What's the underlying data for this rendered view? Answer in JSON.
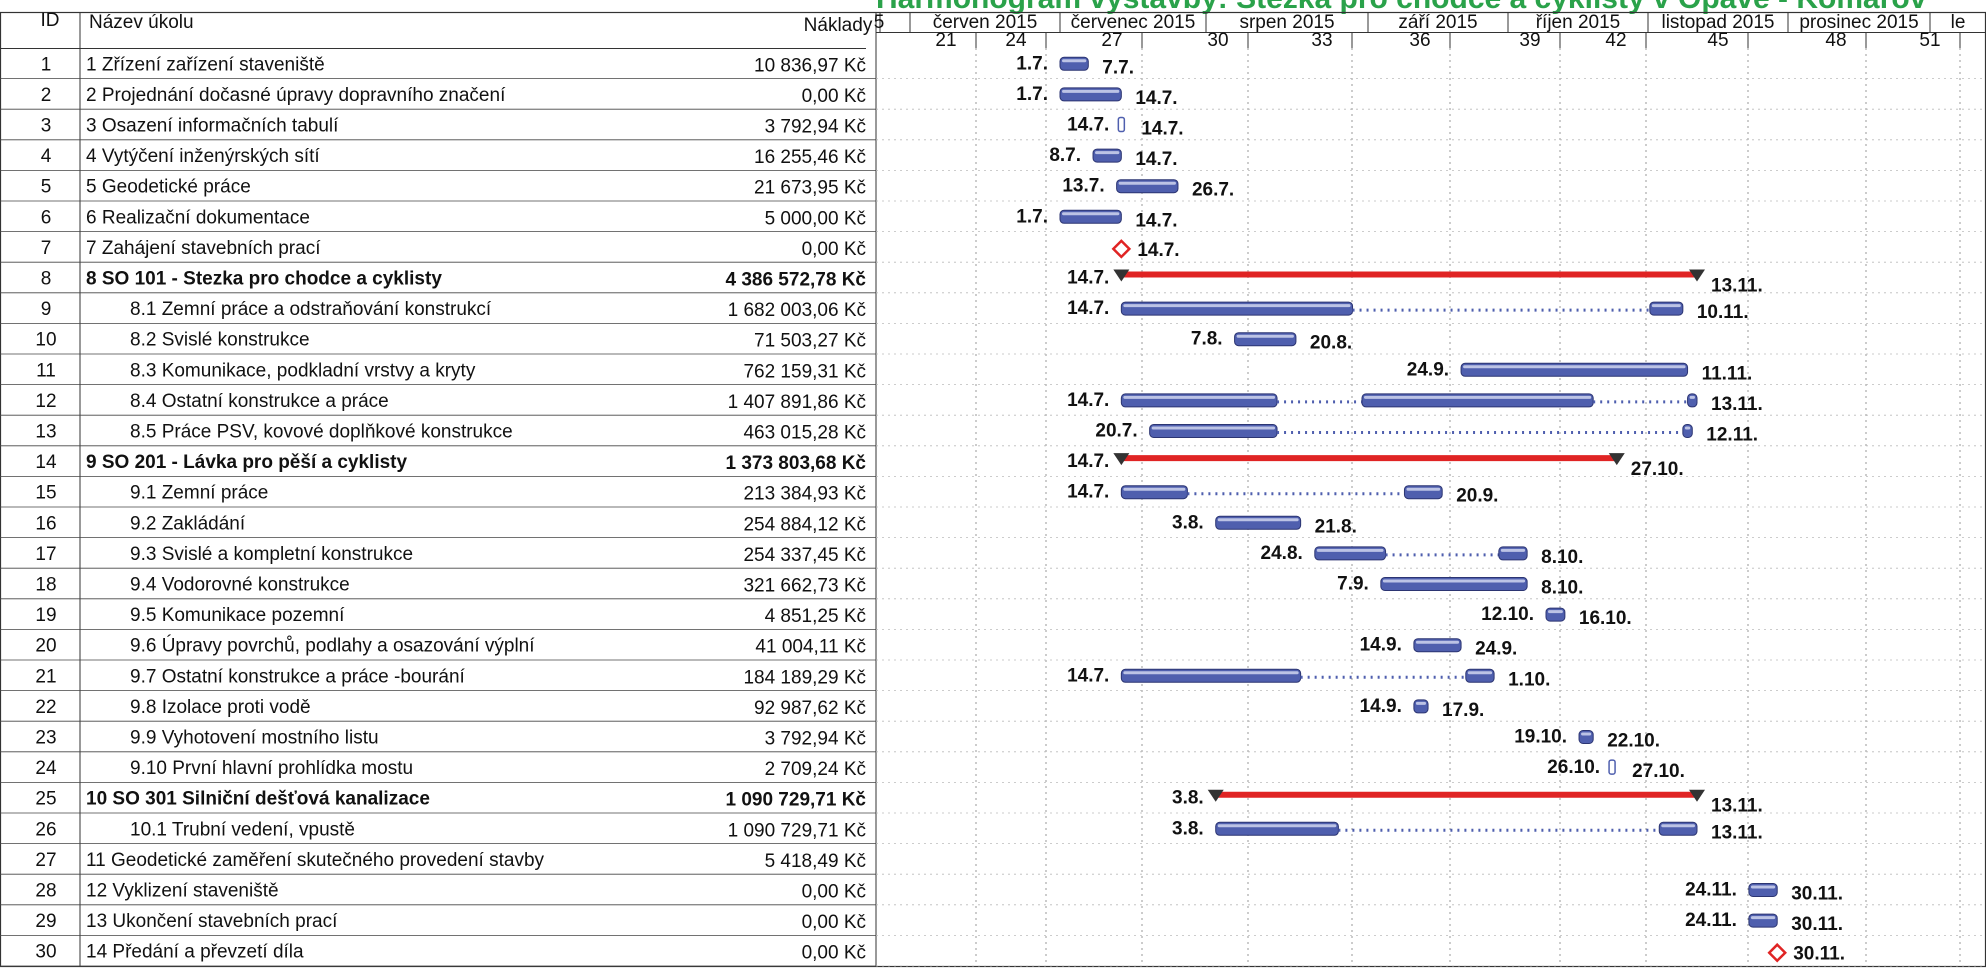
{
  "title": "Harmonogram výstavby: Stezka pro chodce a cyklisty v Opavě - Komárov",
  "table_headers": {
    "id": "ID",
    "name": "Název úkolu",
    "cost": "Náklady"
  },
  "chart_data": {
    "type": "gantt",
    "months": [
      {
        "label": "5"
      },
      {
        "label": "červen 2015"
      },
      {
        "label": "červenec 2015"
      },
      {
        "label": "srpen 2015"
      },
      {
        "label": "září 2015"
      },
      {
        "label": "říjen 2015"
      },
      {
        "label": "listopad 2015"
      },
      {
        "label": "prosinec 2015"
      },
      {
        "label": "le"
      }
    ],
    "weeks": [
      "21",
      "24",
      "27",
      "30",
      "33",
      "36",
      "39",
      "42",
      "45",
      "48",
      "51"
    ],
    "tasks": [
      {
        "id": "1",
        "name": "1 Zřízení zařízení staveniště",
        "cost": "10 836,97 Kč",
        "type": "task",
        "start": "1.7.",
        "end": "7.7.",
        "gap": null,
        "bold": false,
        "indent": false
      },
      {
        "id": "2",
        "name": "2 Projednání dočasné úpravy dopravního značení",
        "cost": "0,00 Kč",
        "type": "task",
        "start": "1.7.",
        "end": "14.7.",
        "gap": null,
        "bold": false,
        "indent": false
      },
      {
        "id": "3",
        "name": "3 Osazení informačních tabulí",
        "cost": "3 792,94 Kč",
        "type": "task",
        "start": "14.7.",
        "end": "14.7.",
        "gap": null,
        "bold": false,
        "indent": false
      },
      {
        "id": "4",
        "name": "4 Vytýčení inženýrských sítí",
        "cost": "16 255,46 Kč",
        "type": "task",
        "start": "8.7.",
        "end": "14.7.",
        "gap": null,
        "bold": false,
        "indent": false
      },
      {
        "id": "5",
        "name": "5 Geodetické práce",
        "cost": "21 673,95 Kč",
        "type": "task",
        "start": "13.7.",
        "end": "26.7.",
        "gap": null,
        "bold": false,
        "indent": false
      },
      {
        "id": "6",
        "name": "6 Realizační dokumentace",
        "cost": "5 000,00 Kč",
        "type": "task",
        "start": "1.7.",
        "end": "14.7.",
        "gap": null,
        "bold": false,
        "indent": false
      },
      {
        "id": "7",
        "name": "7 Zahájení stavebních prací",
        "cost": "0,00 Kč",
        "type": "milestone",
        "start": "14.7.",
        "end": "14.7.",
        "gap": null,
        "bold": false,
        "indent": false
      },
      {
        "id": "8",
        "name": "8 SO 101 - Stezka pro chodce a cyklisty",
        "cost": "4 386 572,78 Kč",
        "type": "summary",
        "start": "14.7.",
        "end": "13.11.",
        "gap": null,
        "bold": true,
        "indent": false
      },
      {
        "id": "9",
        "name": "8.1 Zemní práce a odstraňování konstrukcí",
        "cost": "1 682 003,06 Kč",
        "type": "task",
        "start": "14.7.",
        "end": "10.11.",
        "gap": [
          "1.9.",
          "3.11."
        ],
        "bold": false,
        "indent": true
      },
      {
        "id": "10",
        "name": "8.2 Svislé konstrukce",
        "cost": "71 503,27 Kč",
        "type": "task",
        "start": "7.8.",
        "end": "20.8.",
        "gap": null,
        "bold": false,
        "indent": true
      },
      {
        "id": "11",
        "name": "8.3 Komunikace, podkladní vrstvy a kryty",
        "cost": "762 159,31 Kč",
        "type": "task",
        "start": "24.9.",
        "end": "11.11.",
        "gap": null,
        "bold": false,
        "indent": true
      },
      {
        "id": "12",
        "name": "8.4 Ostatní konstrukce a práce",
        "cost": "1 407 891,86 Kč",
        "type": "task",
        "start": "14.7.",
        "end": "13.11.",
        "gap": [
          "16.8.",
          "3.9."
        ],
        "gap2": [
          "22.10.",
          "11.11."
        ],
        "bold": false,
        "indent": true
      },
      {
        "id": "13",
        "name": "8.5 Práce PSV, kovové doplňkové konstrukce",
        "cost": "463 015,28 Kč",
        "type": "task",
        "start": "20.7.",
        "end": "12.11.",
        "gap": [
          "16.8.",
          "10.11."
        ],
        "bold": false,
        "indent": true
      },
      {
        "id": "14",
        "name": "9 SO 201 - Lávka pro pěší a cyklisty",
        "cost": "1 373 803,68 Kč",
        "type": "summary",
        "start": "14.7.",
        "end": "27.10.",
        "gap": null,
        "bold": true,
        "indent": false
      },
      {
        "id": "15",
        "name": "9.1 Zemní práce",
        "cost": "213 384,93 Kč",
        "type": "task",
        "start": "14.7.",
        "end": "20.9.",
        "gap": [
          "28.7.",
          "12.9."
        ],
        "bold": false,
        "indent": true
      },
      {
        "id": "16",
        "name": "9.2 Zakládání",
        "cost": "254 884,12 Kč",
        "type": "task",
        "start": "3.8.",
        "end": "21.8.",
        "gap": null,
        "bold": false,
        "indent": true
      },
      {
        "id": "17",
        "name": "9.3 Svislé a kompletní konstrukce",
        "cost": "254 337,45 Kč",
        "type": "task",
        "start": "24.8.",
        "end": "8.10.",
        "gap": [
          "8.9.",
          "2.10."
        ],
        "bold": false,
        "indent": true
      },
      {
        "id": "18",
        "name": "9.4 Vodorovné konstrukce",
        "cost": "321 662,73 Kč",
        "type": "task",
        "start": "7.9.",
        "end": "8.10.",
        "gap": null,
        "bold": false,
        "indent": true
      },
      {
        "id": "19",
        "name": "9.5 Komunikace pozemní",
        "cost": "4 851,25 Kč",
        "type": "task",
        "start": "12.10.",
        "end": "16.10.",
        "gap": null,
        "bold": false,
        "indent": true
      },
      {
        "id": "20",
        "name": "9.6 Úpravy povrchů, podlahy a osazování výplní",
        "cost": "41 004,11 Kč",
        "type": "task",
        "start": "14.9.",
        "end": "24.9.",
        "gap": null,
        "bold": false,
        "indent": true
      },
      {
        "id": "21",
        "name": "9.7 Ostatní konstrukce a práce -bourání",
        "cost": "184 189,29 Kč",
        "type": "task",
        "start": "14.7.",
        "end": "1.10.",
        "gap": [
          "21.8.",
          "25.9."
        ],
        "bold": false,
        "indent": true
      },
      {
        "id": "22",
        "name": "9.8 Izolace proti vodě",
        "cost": "92 987,62 Kč",
        "type": "task",
        "start": "14.9.",
        "end": "17.9.",
        "gap": null,
        "bold": false,
        "indent": true
      },
      {
        "id": "23",
        "name": "9.9 Vyhotovení mostního listu",
        "cost": "3 792,94 Kč",
        "type": "task",
        "start": "19.10.",
        "end": "22.10.",
        "gap": null,
        "bold": false,
        "indent": true
      },
      {
        "id": "24",
        "name": "9.10 První hlavní prohlídka mostu",
        "cost": "2 709,24 Kč",
        "type": "task",
        "start": "26.10.",
        "end": "27.10.",
        "gap": null,
        "bold": false,
        "indent": true
      },
      {
        "id": "25",
        "name": "10 SO 301 Silniční dešťová kanalizace",
        "cost": "1 090 729,71 Kč",
        "type": "summary",
        "start": "3.8.",
        "end": "13.11.",
        "gap": null,
        "bold": true,
        "indent": false
      },
      {
        "id": "26",
        "name": "10.1 Trubní vedení, vpustě",
        "cost": "1 090 729,71 Kč",
        "type": "task",
        "start": "3.8.",
        "end": "13.11.",
        "gap": [
          "29.8.",
          "5.11."
        ],
        "bold": false,
        "indent": true
      },
      {
        "id": "27",
        "name": "11 Geodetické zaměření skutečného provedení stavby",
        "cost": "5 418,49 Kč",
        "type": "task",
        "start": "",
        "end": "",
        "gap": null,
        "bold": false,
        "indent": false
      },
      {
        "id": "28",
        "name": "12 Vyklizení staveniště",
        "cost": "0,00 Kč",
        "type": "task",
        "start": "24.11.",
        "end": "30.11.",
        "gap": null,
        "bold": false,
        "indent": false
      },
      {
        "id": "29",
        "name": "13 Ukončení stavebních prací",
        "cost": "0,00 Kč",
        "type": "task",
        "start": "24.11.",
        "end": "30.11.",
        "gap": null,
        "bold": false,
        "indent": false
      },
      {
        "id": "30",
        "name": "14 Předání a převzetí díla",
        "cost": "0,00 Kč",
        "type": "milestone",
        "start": "30.11.",
        "end": "30.11.",
        "gap": null,
        "bold": false,
        "indent": false
      }
    ]
  },
  "colors": {
    "bar": "#4f5fae",
    "bar_light": "#d7dcf3",
    "summary": "#e02424",
    "milestone": "#e02424",
    "title": "#2aa24a"
  }
}
